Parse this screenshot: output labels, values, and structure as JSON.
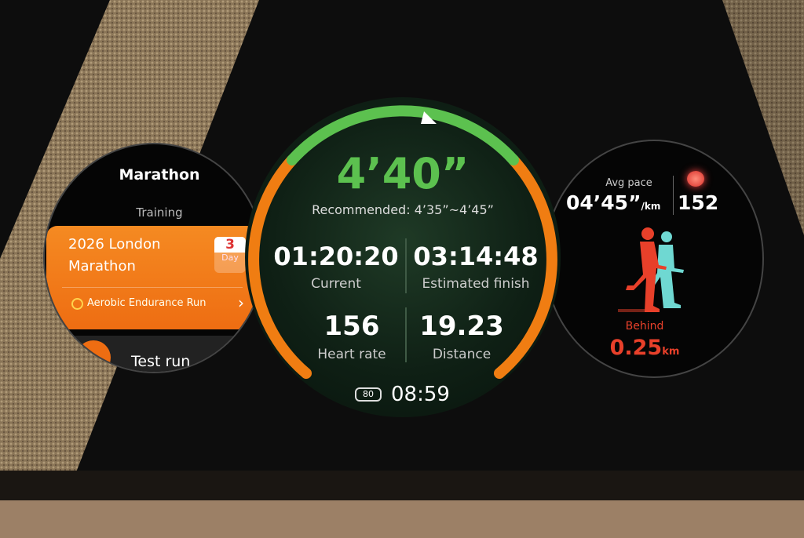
{
  "left_watch": {
    "title": "Marathon",
    "section": "Training",
    "card": {
      "line1": "2026 London",
      "line2": "Marathon",
      "days": "3",
      "days_unit": "Day",
      "workout": "Aerobic Endurance Run"
    },
    "next_item": "Test run"
  },
  "center_watch": {
    "pace": "4’40”",
    "recommended_label": "Recommended:",
    "recommended_range": "4’35”~4’45”",
    "current_time": "01:20:20",
    "current_label": "Current",
    "estimated_finish": "03:14:48",
    "estimated_label": "Estimated finish",
    "heart_rate": "156",
    "heart_rate_label": "Heart rate",
    "distance": "19.23",
    "distance_label": "Distance",
    "battery": "80",
    "clock": "08:59",
    "colors": {
      "green": "#5cc14f",
      "orange": "#f07d12"
    }
  },
  "right_watch": {
    "avg_pace_label": "Avg pace",
    "avg_pace": "04’45”",
    "pace_unit": "/km",
    "heart_rate": "152",
    "status": "Behind",
    "gap": "0.25",
    "gap_unit": "km",
    "colors": {
      "runner": "#e8402a",
      "pacer": "#6fd8d2"
    }
  }
}
